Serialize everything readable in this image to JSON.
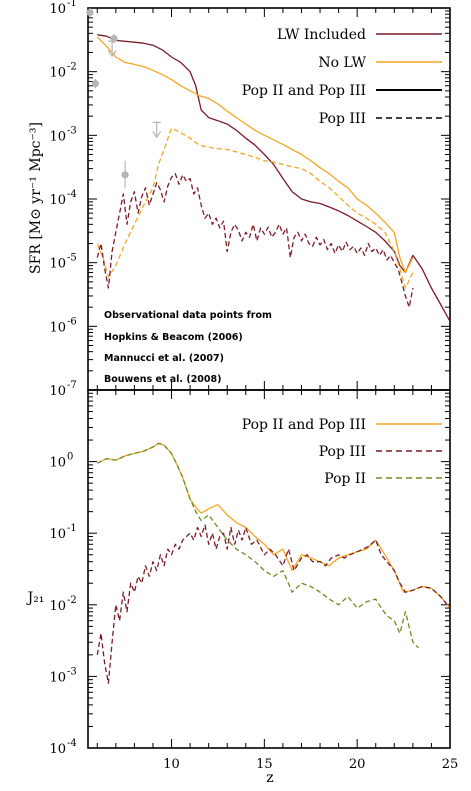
{
  "chart_data": [
    {
      "type": "line",
      "xlabel": "",
      "ylabel": "SFR [M⊙ yr⁻¹ Mpc⁻³]",
      "xlim": [
        5.5,
        25
      ],
      "ylim": [
        1e-07,
        0.1
      ],
      "yscale": "log",
      "xticks": [
        5,
        10,
        15,
        20,
        25
      ],
      "yticks": [
        {
          "v": 1e-07,
          "base": "10",
          "exp": "-7"
        },
        {
          "v": 1e-06,
          "base": "10",
          "exp": "-6"
        },
        {
          "v": 1e-05,
          "base": "10",
          "exp": "-5"
        },
        {
          "v": 0.0001,
          "base": "10",
          "exp": "-4"
        },
        {
          "v": 0.001,
          "base": "10",
          "exp": "-3"
        },
        {
          "v": 0.01,
          "base": "10",
          "exp": "-2"
        },
        {
          "v": 0.1,
          "base": "10",
          "exp": "-1"
        }
      ],
      "legend_position": "top-right",
      "legend": [
        {
          "label": "LW Included",
          "color": "#7b1c26",
          "dash": "solid"
        },
        {
          "label": "No LW",
          "color": "#f5a623",
          "dash": "solid"
        },
        {
          "label": "Pop II and Pop III",
          "color": "#000000",
          "dash": "solid"
        },
        {
          "label": "Pop III",
          "color": "#000000",
          "dash": "dashed"
        }
      ],
      "annotation_lines": [
        "Observational data points from",
        "Hopkins & Beacom (2006)",
        "Mannucci et al. (2007)",
        "Bouwens et al. (2008)"
      ],
      "series": [
        {
          "key": "lw_total",
          "color": "#7b1c26",
          "dash": "solid",
          "x": [
            6,
            6.5,
            7,
            7.5,
            8,
            8.5,
            9,
            9.5,
            10,
            10.5,
            11,
            11.3,
            11.6,
            12,
            12.5,
            13,
            13.5,
            14,
            14.5,
            15,
            15.5,
            16,
            16.5,
            17,
            17.5,
            18,
            18.5,
            19,
            19.5,
            20,
            20.5,
            21,
            21.5,
            22,
            22.3,
            22.6,
            23,
            23.5,
            24,
            24.5,
            25
          ],
          "y": [
            0.038,
            0.036,
            0.031,
            0.03,
            0.029,
            0.028,
            0.026,
            0.022,
            0.017,
            0.014,
            0.01,
            0.006,
            0.0025,
            0.0019,
            0.0017,
            0.0015,
            0.0012,
            0.0009,
            0.0007,
            0.0005,
            0.00035,
            0.00021,
            0.00013,
            0.0001,
            9e-05,
            8.5e-05,
            7.5e-05,
            6.5e-05,
            5.5e-05,
            4.5e-05,
            3.7e-05,
            3e-05,
            2.2e-05,
            1.5e-05,
            9e-06,
            7e-06,
            1.3e-05,
            8e-06,
            4e-06,
            2.2e-06,
            1.2e-06
          ]
        },
        {
          "key": "nolw_total",
          "color": "#f5a623",
          "dash": "solid",
          "x": [
            6,
            6.5,
            7,
            7.5,
            8,
            8.5,
            9,
            9.5,
            10,
            10.5,
            11,
            11.5,
            12,
            12.5,
            13,
            13.5,
            14,
            14.5,
            15,
            15.5,
            16,
            16.5,
            17,
            17.5,
            18,
            18.5,
            19,
            19.5,
            20,
            20.5,
            21,
            21.5,
            22,
            22.3,
            22.6,
            23
          ],
          "y": [
            0.035,
            0.025,
            0.017,
            0.014,
            0.013,
            0.012,
            0.0105,
            0.009,
            0.0075,
            0.006,
            0.005,
            0.0042,
            0.0038,
            0.0031,
            0.0024,
            0.0019,
            0.0015,
            0.0012,
            0.001,
            0.00085,
            0.00072,
            0.0006,
            0.0005,
            0.0004,
            0.00031,
            0.00025,
            0.00019,
            0.00015,
            0.0001,
            8e-05,
            6e-05,
            4.3e-05,
            3e-05,
            1.2e-05,
            7e-06,
            1.2e-05
          ]
        },
        {
          "key": "nolw_pop3",
          "color": "#f5a623",
          "dash": "dashed",
          "x": [
            6,
            6.3,
            6.6,
            7,
            7.5,
            8,
            8.5,
            9,
            9.3,
            9.6,
            10,
            10.5,
            11,
            11.5,
            12,
            12.5,
            13,
            13.5,
            14,
            14.5,
            15,
            15.5,
            16,
            16.5,
            17,
            17.5,
            18,
            18.5,
            19,
            19.5,
            20,
            20.5,
            21,
            21.5,
            22,
            22.3,
            22.6,
            23
          ],
          "y": [
            2e-05,
            1.2e-05,
            6e-06,
            9e-06,
            2e-05,
            4e-05,
            8e-05,
            0.00015,
            0.00035,
            0.0006,
            0.0013,
            0.0011,
            0.0009,
            0.0007,
            0.00065,
            0.00062,
            0.0006,
            0.00055,
            0.0005,
            0.00045,
            0.0004,
            0.00038,
            0.00035,
            0.00032,
            0.0003,
            0.00025,
            0.00019,
            0.00015,
            0.00011,
            8e-05,
            6e-05,
            5e-05,
            4e-05,
            3e-05,
            1.5e-05,
            8e-06,
            4e-06,
            7e-06
          ]
        },
        {
          "key": "lw_pop3",
          "color": "#7b1c26",
          "dash": "dashed",
          "x": [
            6,
            6.2,
            6.4,
            6.6,
            6.8,
            7,
            7.2,
            7.4,
            7.6,
            7.8,
            8,
            8.2,
            8.4,
            8.6,
            8.8,
            9,
            9.2,
            9.4,
            9.6,
            9.8,
            10,
            10.2,
            10.4,
            10.6,
            10.8,
            11,
            11.2,
            11.4,
            11.6,
            11.8,
            12,
            12.2,
            12.4,
            12.6,
            12.8,
            13,
            13.2,
            13.4,
            13.6,
            13.8,
            14,
            14.2,
            14.4,
            14.6,
            14.8,
            15,
            15.2,
            15.4,
            15.6,
            15.8,
            16,
            16.2,
            16.4,
            16.6,
            16.8,
            17,
            17.2,
            17.4,
            17.6,
            17.8,
            18,
            18.2,
            18.4,
            18.6,
            18.8,
            19,
            19.2,
            19.4,
            19.6,
            19.8,
            20,
            20.2,
            20.4,
            20.6,
            20.8,
            21,
            21.2,
            21.4,
            21.6,
            21.8,
            22,
            22.2,
            22.4,
            22.6,
            22.8,
            23
          ],
          "y": [
            1.2e-05,
            2e-05,
            8e-06,
            4e-06,
            1.5e-05,
            3e-05,
            6e-05,
            0.00012,
            4e-05,
            9e-05,
            0.00013,
            6e-05,
            0.00011,
            0.00015,
            8e-05,
            0.00012,
            0.00018,
            0.00014,
            9e-05,
            0.00016,
            0.00022,
            0.00025,
            0.00017,
            0.00024,
            0.00019,
            0.00021,
            0.00012,
            0.00015,
            8e-05,
            5e-05,
            6e-05,
            4e-05,
            5e-05,
            3.5e-05,
            4.5e-05,
            1.5e-05,
            3e-05,
            4e-05,
            3.2e-05,
            2.2e-05,
            3e-05,
            2.5e-05,
            4e-05,
            2.2e-05,
            3.5e-05,
            2.8e-05,
            3.6e-05,
            2.5e-05,
            3e-05,
            4e-05,
            2.8e-05,
            3.5e-05,
            1.2e-05,
            2.5e-05,
            3e-05,
            2.2e-05,
            2.8e-05,
            2e-05,
            1.8e-05,
            2.5e-05,
            1.9e-05,
            2.3e-05,
            1.6e-05,
            2e-05,
            1.4e-05,
            1.9e-05,
            1.5e-05,
            2.1e-05,
            1.6e-05,
            1.8e-05,
            1.4e-05,
            1.7e-05,
            1.3e-05,
            2e-05,
            1.5e-05,
            1.7e-05,
            1.3e-05,
            1.6e-05,
            1.1e-05,
            1.3e-05,
            1e-05,
            8e-06,
            5e-06,
            3e-06,
            2e-06,
            4e-06
          ]
        }
      ],
      "observations": {
        "color": "#b5b5b5",
        "points": [
          {
            "x": 5.6,
            "y": 0.085,
            "yerr_lo": 0.072,
            "yerr_hi": 0.1
          },
          {
            "x": 5.9,
            "y": 0.0065,
            "yerr_lo": 0.0055,
            "yerr_hi": 0.0077
          },
          {
            "x": 6.9,
            "y": 0.033,
            "yerr_lo": 0.028,
            "yerr_hi": 0.039
          },
          {
            "x": 7.5,
            "y": 0.00024,
            "yerr_lo": 0.00015,
            "yerr_hi": 0.0004
          }
        ],
        "upper_limits": [
          {
            "x": 6.8,
            "y": 0.03
          },
          {
            "x": 9.2,
            "y": 0.0016
          }
        ]
      }
    },
    {
      "type": "line",
      "xlabel": "z",
      "ylabel": "J₂₁",
      "xlim": [
        5.5,
        25
      ],
      "ylim": [
        0.0001,
        10
      ],
      "yscale": "log",
      "xticks": [
        10,
        15,
        20,
        25
      ],
      "yticks": [
        {
          "v": 0.0001,
          "base": "10",
          "exp": "-4"
        },
        {
          "v": 0.001,
          "base": "10",
          "exp": "-3"
        },
        {
          "v": 0.01,
          "base": "10",
          "exp": "-2"
        },
        {
          "v": 0.1,
          "base": "10",
          "exp": "-1"
        },
        {
          "v": 1,
          "base": "10",
          "exp": "0"
        }
      ],
      "legend_position": "top-right",
      "legend": [
        {
          "label": "Pop II and Pop III",
          "color": "#f5a623",
          "dash": "solid"
        },
        {
          "label": "Pop III",
          "color": "#7b1c26",
          "dash": "dashed"
        },
        {
          "label": "Pop II",
          "color": "#6b8e23",
          "dash": "dashed"
        }
      ],
      "series": [
        {
          "key": "j21_total",
          "color": "#f5a623",
          "dash": "solid",
          "x": [
            6,
            6.5,
            7,
            7.5,
            8,
            8.5,
            9,
            9.3,
            9.6,
            10,
            10.3,
            10.6,
            11,
            11.3,
            11.6,
            12,
            12.5,
            13,
            13.5,
            14,
            14.5,
            15,
            15.5,
            16,
            16.5,
            17,
            17.5,
            18,
            18.5,
            19,
            19.5,
            20,
            20.5,
            21,
            21.5,
            22,
            22.5,
            23,
            23.5,
            24,
            24.5,
            25
          ],
          "y": [
            0.95,
            1.1,
            1.05,
            1.2,
            1.3,
            1.4,
            1.6,
            1.8,
            1.7,
            1.3,
            0.9,
            0.6,
            0.3,
            0.23,
            0.19,
            0.22,
            0.25,
            0.18,
            0.14,
            0.12,
            0.09,
            0.07,
            0.05,
            0.06,
            0.03,
            0.05,
            0.045,
            0.04,
            0.035,
            0.045,
            0.05,
            0.055,
            0.06,
            0.08,
            0.05,
            0.03,
            0.015,
            0.016,
            0.018,
            0.017,
            0.013,
            0.009
          ]
        },
        {
          "key": "j21_pop3",
          "color": "#7b1c26",
          "dash": "dashed",
          "x": [
            6,
            6.2,
            6.4,
            6.6,
            6.8,
            7,
            7.2,
            7.4,
            7.6,
            7.8,
            8,
            8.2,
            8.4,
            8.6,
            8.8,
            9,
            9.2,
            9.4,
            9.6,
            9.8,
            10,
            10.2,
            10.4,
            10.6,
            10.8,
            11,
            11.2,
            11.4,
            11.6,
            11.8,
            12,
            12.2,
            12.4,
            12.6,
            12.8,
            13,
            13.2,
            13.4,
            13.6,
            13.8,
            14,
            14.3,
            14.6,
            15,
            15.3,
            15.6,
            16,
            16.3,
            16.6,
            17,
            17.3,
            17.6,
            18,
            18.3,
            18.6,
            19,
            19.3,
            19.6,
            20,
            20.3,
            20.6,
            21,
            21.3,
            21.6,
            22,
            22.3,
            22.6,
            23,
            23.5,
            24,
            24.5,
            25
          ],
          "y": [
            0.002,
            0.004,
            0.0015,
            0.0008,
            0.003,
            0.01,
            0.006,
            0.015,
            0.008,
            0.02,
            0.015,
            0.025,
            0.02,
            0.035,
            0.025,
            0.04,
            0.03,
            0.05,
            0.035,
            0.06,
            0.05,
            0.07,
            0.06,
            0.08,
            0.09,
            0.1,
            0.08,
            0.12,
            0.09,
            0.13,
            0.07,
            0.1,
            0.06,
            0.09,
            0.1,
            0.06,
            0.12,
            0.07,
            0.11,
            0.08,
            0.12,
            0.07,
            0.08,
            0.05,
            0.06,
            0.05,
            0.035,
            0.06,
            0.03,
            0.045,
            0.05,
            0.04,
            0.04,
            0.035,
            0.045,
            0.05,
            0.045,
            0.05,
            0.055,
            0.06,
            0.065,
            0.08,
            0.05,
            0.04,
            0.03,
            0.02,
            0.015,
            0.016,
            0.018,
            0.017,
            0.013,
            0.009
          ]
        },
        {
          "key": "j21_pop2",
          "color": "#6b8e23",
          "dash": "dashed",
          "x": [
            6,
            6.5,
            7,
            7.5,
            8,
            8.5,
            9,
            9.3,
            9.6,
            10,
            10.3,
            10.6,
            11,
            11.3,
            11.6,
            12,
            12.5,
            13,
            13.5,
            14,
            14.5,
            15,
            15.5,
            16,
            16.5,
            17,
            17.5,
            18,
            18.5,
            19,
            19.5,
            20,
            20.5,
            21,
            21.3,
            21.6,
            22,
            22.3,
            22.6,
            23,
            23.3
          ],
          "y": [
            0.95,
            1.1,
            1.05,
            1.2,
            1.3,
            1.4,
            1.6,
            1.8,
            1.7,
            1.3,
            0.9,
            0.6,
            0.3,
            0.2,
            0.15,
            0.18,
            0.12,
            0.08,
            0.06,
            0.05,
            0.04,
            0.03,
            0.025,
            0.03,
            0.015,
            0.02,
            0.018,
            0.015,
            0.012,
            0.01,
            0.013,
            0.009,
            0.011,
            0.012,
            0.009,
            0.007,
            0.006,
            0.004,
            0.008,
            0.003,
            0.0025
          ]
        }
      ]
    }
  ]
}
